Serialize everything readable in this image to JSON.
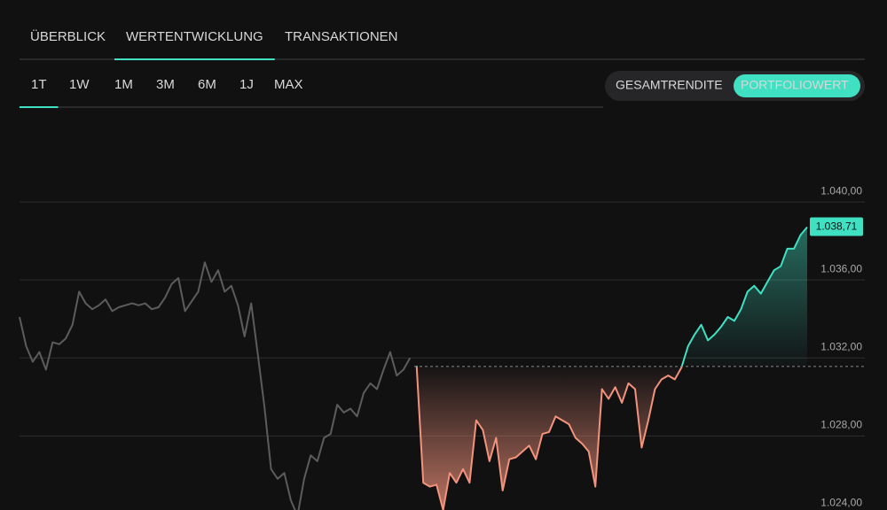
{
  "tabs": {
    "items": [
      "ÜBERBLICK",
      "WERTENTWICKLUNG",
      "TRANSAKTIONEN"
    ],
    "active": 1
  },
  "periods": {
    "items": [
      "1T",
      "1W",
      "1M",
      "3M",
      "6M",
      "1J",
      "MAX"
    ],
    "active": 0,
    "disabled": [
      4
    ]
  },
  "toggle": {
    "items": [
      "GESAMTRENDITE",
      "PORTFOLIOWERT"
    ],
    "active": 1
  },
  "chart_data": {
    "type": "line",
    "x": [
      0,
      1,
      2,
      3,
      4,
      5,
      6,
      7,
      8,
      9,
      10,
      11,
      12,
      13,
      14,
      15,
      16,
      17,
      18,
      19,
      20,
      21,
      22,
      23,
      24,
      25,
      26,
      27,
      28,
      29,
      30,
      31,
      32,
      33,
      34,
      35,
      36,
      37,
      38,
      39,
      40,
      41,
      42,
      43,
      44,
      45,
      46,
      47,
      48,
      49,
      50,
      51,
      52,
      53,
      54,
      55,
      56,
      57,
      58,
      59,
      60,
      61,
      62,
      63,
      64,
      65,
      66,
      67,
      68,
      69,
      70,
      71,
      72,
      73,
      74,
      75,
      76,
      77,
      78,
      79,
      80,
      81,
      82,
      83,
      84,
      85,
      86,
      87,
      88,
      89,
      90,
      91,
      92,
      93,
      94,
      95,
      96,
      97,
      98,
      99,
      100,
      101,
      102,
      103,
      104,
      105,
      106,
      107,
      108,
      109,
      110,
      111,
      112,
      113,
      114,
      115,
      116,
      117,
      118,
      119
    ],
    "series": [
      {
        "color": "#5c5c5c",
        "values": [
          1034.1,
          1032.6,
          1031.8,
          1032.3,
          1031.4,
          1032.8,
          1032.7,
          1033.0,
          1033.7,
          1035.4,
          1034.8,
          1034.5,
          1034.7,
          1035.0,
          1034.4,
          1034.6,
          1034.7,
          1034.8,
          1034.7,
          1034.8,
          1034.5,
          1034.6,
          1035.1,
          1035.8,
          1036.1,
          1034.4,
          1034.9,
          1035.4,
          1036.9,
          1035.9,
          1036.5,
          1035.4,
          1035.7,
          1034.7,
          1033.1,
          1034.8,
          1032.2,
          1029.5,
          1026.3,
          1025.8,
          1026.1,
          1024.7,
          1023.9,
          1025.8,
          1027.0,
          1026.7,
          1027.9,
          1028.1,
          1029.6,
          1029.2,
          1029.4,
          1029.0,
          1030.2,
          1030.7,
          1030.4,
          1031.4,
          1032.3,
          1031.1,
          1031.4,
          1032.0,
          null,
          null,
          null,
          null,
          null,
          null,
          null,
          null,
          null,
          null,
          null,
          null,
          null,
          null,
          null,
          null,
          null,
          null,
          null,
          null,
          null,
          null,
          null,
          null,
          null,
          null,
          null,
          null,
          null,
          null,
          null,
          null,
          null,
          null,
          null,
          null,
          null,
          null,
          null,
          null,
          null,
          null,
          null,
          null,
          null,
          null,
          null,
          null,
          null,
          null,
          null,
          null,
          null,
          null,
          null,
          null,
          null,
          null,
          null,
          null
        ]
      },
      {
        "color": "#40e0c2",
        "negative_color": "#f3937c",
        "values": [
          null,
          null,
          null,
          null,
          null,
          null,
          null,
          null,
          null,
          null,
          null,
          null,
          null,
          null,
          null,
          null,
          null,
          null,
          null,
          null,
          null,
          null,
          null,
          null,
          null,
          null,
          null,
          null,
          null,
          null,
          null,
          null,
          null,
          null,
          null,
          null,
          null,
          null,
          null,
          null,
          null,
          null,
          null,
          null,
          null,
          null,
          null,
          null,
          null,
          null,
          null,
          null,
          null,
          null,
          null,
          null,
          null,
          null,
          null,
          null,
          1031.6,
          1025.6,
          1025.4,
          1025.5,
          1024.2,
          1026.1,
          1025.6,
          1026.3,
          1025.6,
          1028.8,
          1028.3,
          1026.7,
          1027.9,
          1025.2,
          1026.8,
          1026.9,
          1027.2,
          1027.5,
          1026.8,
          1028.1,
          1028.2,
          1029.0,
          1028.8,
          1028.6,
          1027.9,
          1027.6,
          1027.2,
          1025.4,
          1030.4,
          1029.9,
          1030.5,
          1029.7,
          1030.7,
          1030.4,
          1027.4,
          1028.8,
          1030.4,
          1030.9,
          1031.1,
          1030.9,
          1031.5,
          1032.6,
          1033.2,
          1033.7,
          1032.9,
          1033.2,
          1033.6,
          1034.1,
          1033.9,
          1034.5,
          1035.4,
          1035.7,
          1035.3,
          1035.9,
          1036.5,
          1036.7,
          1037.6,
          1037.6,
          1038.3,
          1038.71
        ]
      }
    ],
    "baseline": 1031.56,
    "current_value": {
      "value": 1038.71,
      "label": "1.038,71"
    },
    "ylim": [
      1024.2,
      1044
    ],
    "yticks": [
      {
        "value": 1024,
        "label": "1.024,00"
      },
      {
        "value": 1028,
        "label": "1.028,00"
      },
      {
        "value": 1032,
        "label": "1.032,00"
      },
      {
        "value": 1036,
        "label": "1.036,00"
      },
      {
        "value": 1040,
        "label": "1.040,00"
      }
    ],
    "grid": true
  }
}
